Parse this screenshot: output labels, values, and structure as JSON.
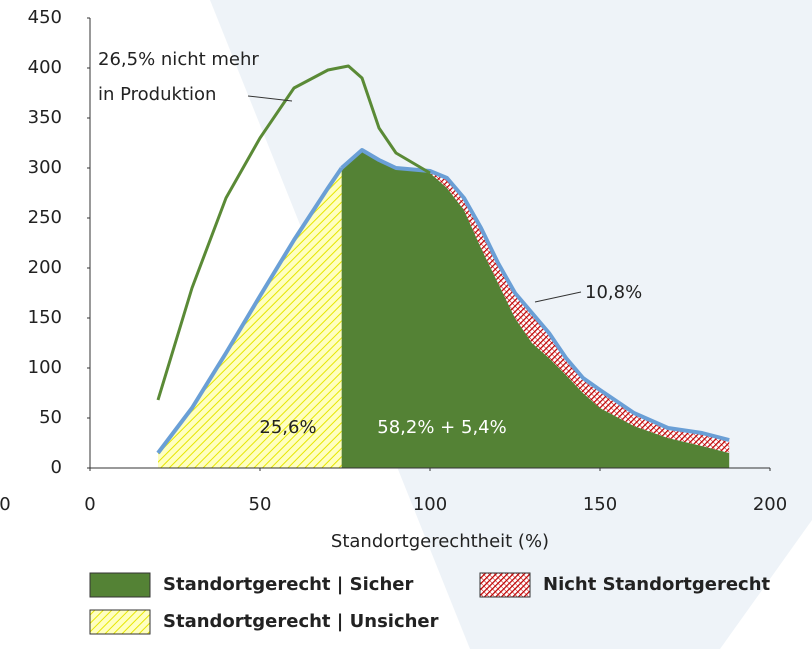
{
  "chart_data": {
    "type": "area",
    "xlabel": "Standortgerechtheit (%)",
    "xlim": [
      0,
      200
    ],
    "xticks": [
      0,
      50,
      100,
      150,
      200
    ],
    "ylim": [
      0,
      450
    ],
    "yticks": [
      0,
      50,
      100,
      150,
      200,
      250,
      300,
      350,
      400,
      450
    ],
    "stray_label": "0",
    "outline_color": "#6a9fd6",
    "series": [
      {
        "name": "Standortgerecht | Sicher",
        "color": "#548235",
        "fill": "solid",
        "x": [
          74,
          80,
          85,
          90,
          100,
          105,
          110,
          115,
          120,
          125,
          130,
          135,
          140,
          145,
          150,
          160,
          170,
          180,
          188
        ],
        "values": [
          300,
          318,
          308,
          300,
          295,
          280,
          258,
          220,
          185,
          150,
          125,
          110,
          93,
          75,
          60,
          42,
          30,
          22,
          15
        ]
      },
      {
        "name": "Nicht Standortgerecht",
        "color": "#c00000",
        "fill": "hatch",
        "stacked_on": 0,
        "x": [
          74,
          80,
          85,
          90,
          100,
          105,
          110,
          115,
          120,
          125,
          130,
          135,
          140,
          145,
          150,
          160,
          170,
          180,
          188
        ],
        "values": [
          0,
          0,
          0,
          0,
          2,
          10,
          12,
          20,
          20,
          25,
          30,
          25,
          17,
          15,
          18,
          13,
          10,
          13,
          13
        ]
      },
      {
        "name": "Standortgerecht | Unsicher",
        "color": "#e6e600",
        "fill": "hatch",
        "x": [
          20,
          30,
          40,
          50,
          60,
          70,
          74
        ],
        "values": [
          15,
          60,
          115,
          172,
          228,
          280,
          300
        ]
      }
    ],
    "total_line": {
      "color": "#5a8a36",
      "x": [
        20,
        30,
        40,
        50,
        60,
        70,
        76,
        80,
        85,
        90,
        100
      ],
      "values": [
        68,
        180,
        270,
        330,
        380,
        398,
        402,
        390,
        340,
        315,
        295
      ]
    },
    "annotations": [
      "26,5% nicht mehr",
      "in Produktion",
      "10,8%",
      "25,6%",
      "58,2% + 5,4%"
    ]
  }
}
